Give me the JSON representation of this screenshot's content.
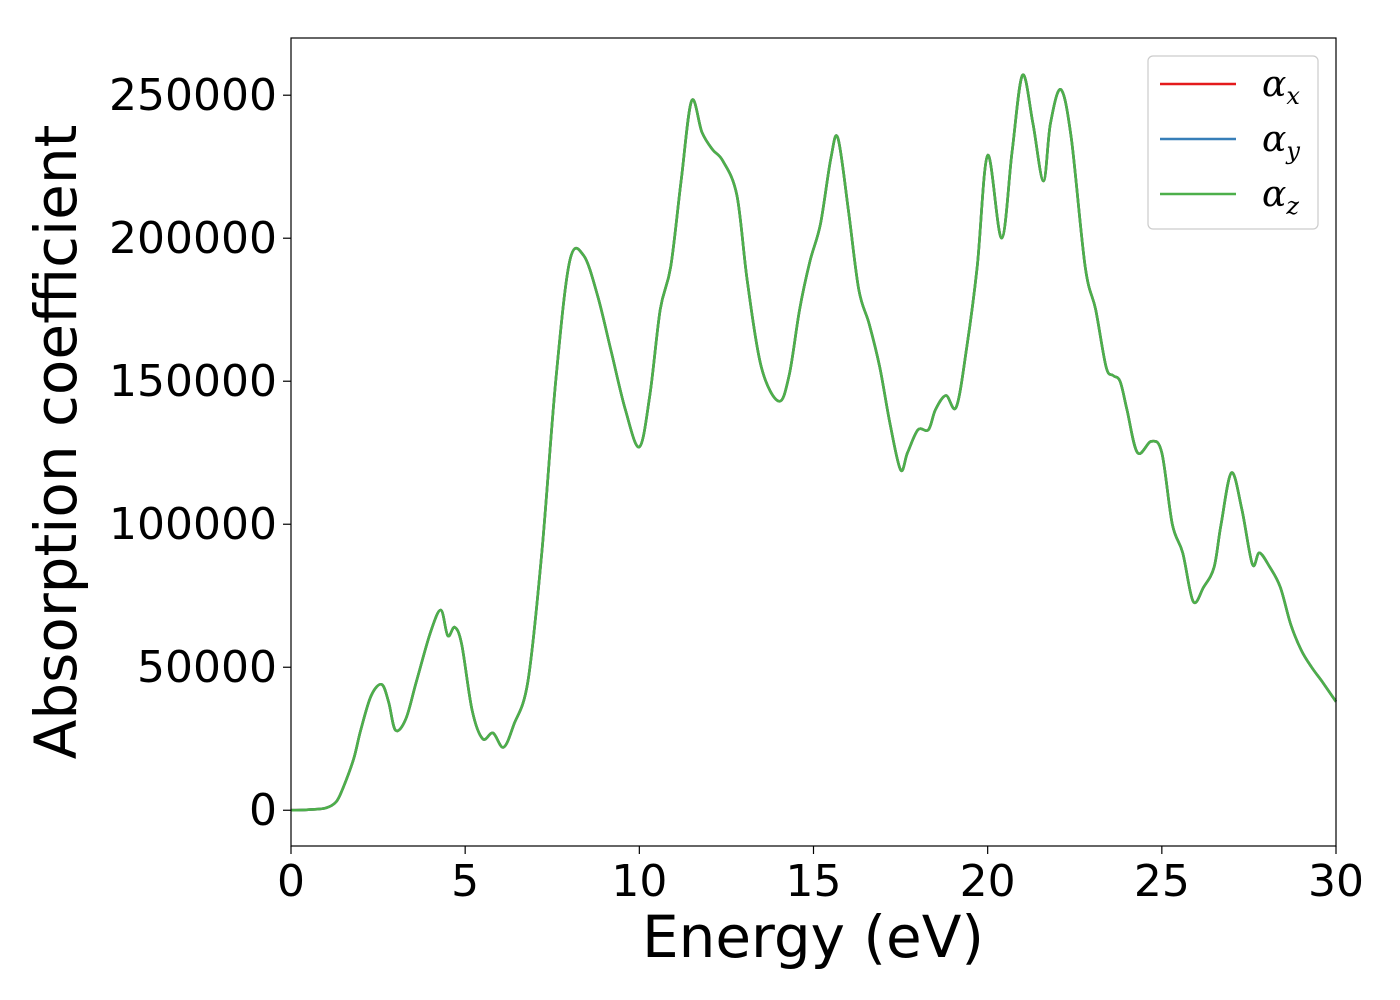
{
  "chart_data": {
    "type": "line",
    "title": "",
    "xlabel": "Energy (eV)",
    "ylabel": "Absorption coefficient",
    "xlim": [
      0,
      30
    ],
    "ylim": [
      -12500,
      270000
    ],
    "x_ticks": [
      0,
      5,
      10,
      15,
      20,
      25,
      30
    ],
    "y_ticks": [
      0,
      50000,
      100000,
      150000,
      200000,
      250000
    ],
    "grid": false,
    "legend_position": "top-right",
    "legend": [
      {
        "symbol": "α",
        "sub": "x",
        "color": "#e41a1c"
      },
      {
        "symbol": "α",
        "sub": "y",
        "color": "#377eb8"
      },
      {
        "symbol": "α",
        "sub": "z",
        "color": "#4daf4a"
      }
    ],
    "x": [
      0,
      0.5,
      1.0,
      1.3,
      1.5,
      1.8,
      2.0,
      2.3,
      2.6,
      2.8,
      3.0,
      3.3,
      3.6,
      4.0,
      4.3,
      4.5,
      4.7,
      4.9,
      5.2,
      5.5,
      5.8,
      6.1,
      6.4,
      6.8,
      7.2,
      7.6,
      8.0,
      8.4,
      8.8,
      9.2,
      9.6,
      10.0,
      10.3,
      10.6,
      10.9,
      11.2,
      11.5,
      11.8,
      12.1,
      12.4,
      12.8,
      13.1,
      13.5,
      14.0,
      14.3,
      14.6,
      14.9,
      15.2,
      15.5,
      15.7,
      16.0,
      16.3,
      16.6,
      16.9,
      17.2,
      17.5,
      17.7,
      18.0,
      18.3,
      18.5,
      18.8,
      19.1,
      19.4,
      19.7,
      20.0,
      20.4,
      20.7,
      21.0,
      21.3,
      21.6,
      21.8,
      22.1,
      22.4,
      22.8,
      23.1,
      23.4,
      23.6,
      23.8,
      24.0,
      24.3,
      24.7,
      25.0,
      25.3,
      25.6,
      25.9,
      26.2,
      26.5,
      26.7,
      27.0,
      27.3,
      27.6,
      27.8,
      28.1,
      28.4,
      28.7,
      29.0,
      29.3,
      29.6,
      30.0
    ],
    "series": [
      {
        "values": [
          0,
          200,
          800,
          3000,
          8000,
          18000,
          28000,
          40000,
          44000,
          38000,
          28000,
          32000,
          45000,
          62000,
          70000,
          61000,
          64000,
          58000,
          35000,
          25000,
          27000,
          22000,
          30000,
          45000,
          90000,
          150000,
          192000,
          194000,
          180000,
          160000,
          140000,
          127000,
          145000,
          175000,
          190000,
          220000,
          248000,
          237000,
          231000,
          227000,
          215000,
          185000,
          155000,
          143000,
          152000,
          175000,
          192000,
          205000,
          228000,
          235000,
          210000,
          182000,
          170000,
          155000,
          135000,
          119000,
          125000,
          133000,
          133000,
          140000,
          145000,
          141000,
          162000,
          190000,
          229000,
          200000,
          230000,
          257000,
          240000,
          220000,
          240000,
          252000,
          235000,
          190000,
          175000,
          155000,
          152000,
          150000,
          140000,
          125000,
          129000,
          125000,
          100000,
          90000,
          73000,
          78000,
          85000,
          100000,
          118000,
          105000,
          86000,
          90000,
          85000,
          78000,
          65000,
          56000,
          50000,
          45000,
          38000
        ]
      },
      {
        "values": [
          0,
          200,
          800,
          3000,
          8000,
          18000,
          28000,
          40000,
          44000,
          38000,
          28000,
          32000,
          45000,
          62000,
          70000,
          61000,
          64000,
          58000,
          35000,
          25000,
          27000,
          22000,
          30000,
          45000,
          90000,
          150000,
          192000,
          194000,
          180000,
          160000,
          140000,
          127000,
          145000,
          175000,
          190000,
          220000,
          248000,
          237000,
          231000,
          227000,
          215000,
          185000,
          155000,
          143000,
          152000,
          175000,
          192000,
          205000,
          228000,
          235000,
          210000,
          182000,
          170000,
          155000,
          135000,
          119000,
          125000,
          133000,
          133000,
          140000,
          145000,
          141000,
          162000,
          190000,
          229000,
          200000,
          230000,
          257000,
          240000,
          220000,
          240000,
          252000,
          235000,
          190000,
          175000,
          155000,
          152000,
          150000,
          140000,
          125000,
          129000,
          125000,
          100000,
          90000,
          73000,
          78000,
          85000,
          100000,
          118000,
          105000,
          86000,
          90000,
          85000,
          78000,
          65000,
          56000,
          50000,
          45000,
          38000
        ]
      },
      {
        "values": [
          0,
          200,
          800,
          3000,
          8000,
          18000,
          28000,
          40000,
          44000,
          38000,
          28000,
          32000,
          45000,
          62000,
          70000,
          61000,
          64000,
          58000,
          35000,
          25000,
          27000,
          22000,
          30000,
          45000,
          90000,
          150000,
          192000,
          194000,
          180000,
          160000,
          140000,
          127000,
          145000,
          175000,
          190000,
          220000,
          248000,
          237000,
          231000,
          227000,
          215000,
          185000,
          155000,
          143000,
          152000,
          175000,
          192000,
          205000,
          228000,
          235000,
          210000,
          182000,
          170000,
          155000,
          135000,
          119000,
          125000,
          133000,
          133000,
          140000,
          145000,
          141000,
          162000,
          190000,
          229000,
          200000,
          230000,
          257000,
          240000,
          220000,
          240000,
          252000,
          235000,
          190000,
          175000,
          155000,
          152000,
          150000,
          140000,
          125000,
          129000,
          125000,
          100000,
          90000,
          73000,
          78000,
          85000,
          100000,
          118000,
          105000,
          86000,
          90000,
          85000,
          78000,
          65000,
          56000,
          50000,
          45000,
          38000
        ]
      }
    ]
  }
}
